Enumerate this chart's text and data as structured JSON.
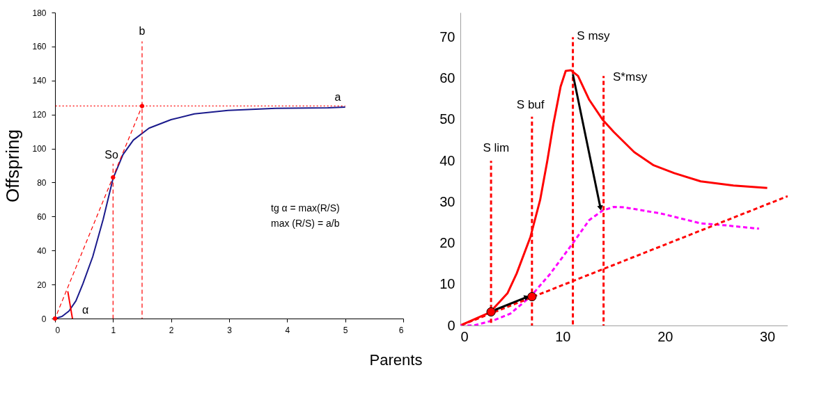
{
  "chart_data": [
    {
      "type": "line",
      "xlabel": "Parents",
      "ylabel": "Offspring",
      "xlim": [
        0,
        6
      ],
      "ylim": [
        0,
        180
      ],
      "xticks": [
        0,
        1,
        2,
        3,
        4,
        5,
        6
      ],
      "yticks": [
        0,
        20,
        40,
        60,
        80,
        100,
        120,
        140,
        160,
        180
      ],
      "series": [
        {
          "color": "#1a1a8c",
          "x": [
            0,
            0.12,
            0.24,
            0.36,
            0.48,
            0.65,
            0.83,
            1,
            1.17,
            1.35,
            1.62,
            2,
            2.4,
            2.98,
            3.8,
            4.7,
            5
          ],
          "values": [
            0,
            1.2,
            4.4,
            10.4,
            20.4,
            36.4,
            58.4,
            82.4,
            96.4,
            105,
            112,
            117,
            120.4,
            122.4,
            123.6,
            124,
            124.4
          ]
        },
        {
          "color": "#ff0000",
          "line_style": "dotted",
          "x": [
            0,
            5
          ],
          "values": [
            125,
            125
          ]
        },
        {
          "color": "#ff0000",
          "line_style": "dashed",
          "x": [
            0,
            1.5
          ],
          "values": [
            0,
            125
          ]
        },
        {
          "color": "#ff0000",
          "line_style": "dashed",
          "x": [
            1,
            1
          ],
          "values": [
            0,
            91
          ]
        },
        {
          "color": "#ff0000",
          "line_style": "dashed",
          "x": [
            1.5,
            1.5
          ],
          "values": [
            0,
            163
          ]
        },
        {
          "color": "#ff0000",
          "x": [
            0.22,
            0.3
          ],
          "values": [
            16,
            0
          ]
        },
        {
          "type": "scatter",
          "marker": "circle",
          "color": "#ff0000",
          "x": [
            0,
            1,
            1.5
          ],
          "values": [
            0,
            83,
            125
          ]
        }
      ],
      "annotations": [
        "b",
        "So",
        "a",
        "α",
        "tg α = max(R/S)",
        "max (R/S) = a/b"
      ]
    },
    {
      "type": "line",
      "xlim": [
        0,
        32
      ],
      "ylim": [
        0,
        76
      ],
      "xticks": [
        0,
        10,
        20,
        30
      ],
      "yticks": [
        0,
        10,
        20,
        30,
        40,
        50,
        60,
        70
      ],
      "series": [
        {
          "color": "#ff0000",
          "x": [
            0,
            2.9,
            4.6,
            5.5,
            6.85,
            7.8,
            8.5,
            9.1,
            9.8,
            10.3,
            10.8,
            11.5,
            12.6,
            13.9,
            15,
            17,
            18.9,
            20.9,
            23.5,
            26.7,
            30
          ],
          "values": [
            0,
            3.2,
            7.8,
            12.6,
            21.5,
            30.5,
            40,
            49,
            58,
            61.8,
            62,
            60.6,
            54.8,
            50,
            47,
            42.1,
            38.9,
            37,
            35,
            34,
            33.4
          ]
        },
        {
          "color": "#ff00ff",
          "line_style": "dashed",
          "x": [
            0,
            1.3,
            3.3,
            4.9,
            6.85,
            8.8,
            11,
            12.6,
            13.9,
            15,
            16,
            19.6,
            23.5,
            26,
            29.2
          ],
          "values": [
            0,
            0,
            1.3,
            2.9,
            7,
            12.6,
            20,
            25.6,
            27.9,
            28.8,
            28.7,
            27.2,
            24.8,
            24.3,
            23.5
          ]
        },
        {
          "color": "#ff0000",
          "line_style": "dashed",
          "x": [
            0,
            32
          ],
          "values": [
            0,
            31.4
          ]
        },
        {
          "color": "#ff0000",
          "line_style": "dashed",
          "x": [
            3,
            3
          ],
          "values": [
            0,
            40
          ]
        },
        {
          "color": "#ff0000",
          "line_style": "dashed",
          "x": [
            7,
            7
          ],
          "values": [
            0,
            50.7
          ]
        },
        {
          "color": "#ff0000",
          "line_style": "dashed",
          "x": [
            11,
            11
          ],
          "values": [
            0,
            70
          ]
        },
        {
          "color": "#ff0000",
          "line_style": "dashed",
          "x": [
            14,
            14
          ],
          "values": [
            0,
            60.6
          ]
        },
        {
          "color": "#000000",
          "marker": "triangle",
          "x": [
            3.4,
            6.5
          ],
          "values": [
            3.8,
            6.9
          ]
        },
        {
          "color": "#000000",
          "marker": "triangle",
          "x": [
            11,
            13.7
          ],
          "values": [
            61,
            28.5
          ]
        },
        {
          "type": "scatter",
          "marker": "circle",
          "color": "#ff0000",
          "x": [
            3,
            7
          ],
          "values": [
            3.3,
            7
          ]
        }
      ],
      "annotations": [
        "S lim",
        "S buf",
        "S msy",
        "S*msy"
      ]
    }
  ]
}
